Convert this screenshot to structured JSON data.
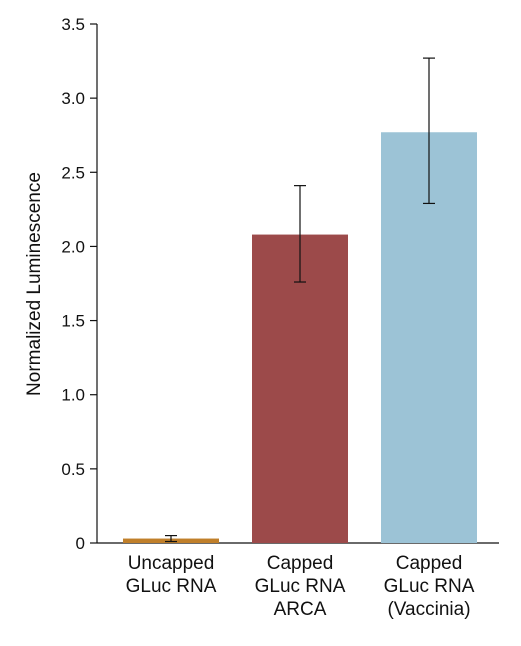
{
  "chart_data": {
    "type": "bar",
    "title": "",
    "xlabel": "",
    "ylabel": "Normalized Luminescence",
    "ylim": [
      0,
      3.5
    ],
    "yticks": [
      "0",
      "0.5",
      "1.0",
      "1.5",
      "2.0",
      "2.5",
      "3.0",
      "3.5"
    ],
    "ytick_values": [
      0,
      0.5,
      1.0,
      1.5,
      2.0,
      2.5,
      3.0,
      3.5
    ],
    "grid": false,
    "categories": [
      [
        "Uncapped",
        "GLuc RNA"
      ],
      [
        "Capped",
        "GLuc RNA",
        "ARCA"
      ],
      [
        "Capped",
        "GLuc RNA",
        "(Vaccinia)"
      ]
    ],
    "values": [
      0.03,
      2.08,
      2.77
    ],
    "error_low": [
      0.01,
      1.76,
      2.29
    ],
    "error_high": [
      0.05,
      2.41,
      3.27
    ],
    "colors": [
      "#c07f2a",
      "#9c4a4a",
      "#9cc3d6"
    ]
  }
}
